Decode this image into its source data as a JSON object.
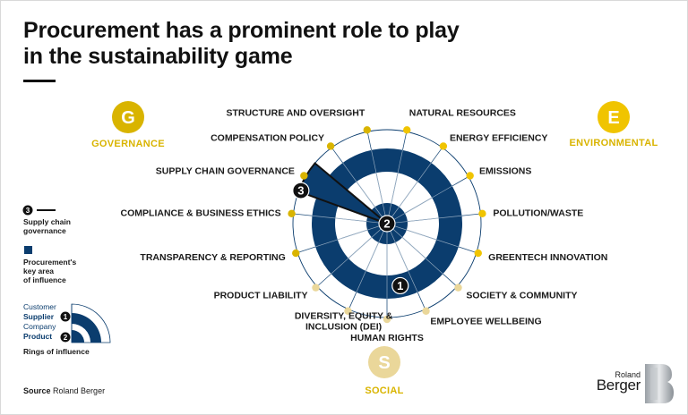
{
  "title_line1": "Procurement has a prominent role to play",
  "title_line2": "in the sustainability game",
  "categories": {
    "governance": {
      "letter": "G",
      "name": "GOVERNANCE",
      "color": "#d9b400"
    },
    "environmental": {
      "letter": "E",
      "name": "ENVIRONMENTAL",
      "color": "#f0c400"
    },
    "social": {
      "letter": "S",
      "name": "SOCIAL",
      "color": "#ead79a"
    }
  },
  "spokes": [
    {
      "label": "NATURAL RESOURCES",
      "group": "environmental"
    },
    {
      "label": "ENERGY EFFICIENCY",
      "group": "environmental"
    },
    {
      "label": "EMISSIONS",
      "group": "environmental"
    },
    {
      "label": "POLLUTION/WASTE",
      "group": "environmental"
    },
    {
      "label": "GREENTECH INNOVATION",
      "group": "environmental"
    },
    {
      "label": "SOCIETY & COMMUNITY",
      "group": "social"
    },
    {
      "label": "EMPLOYEE WELLBEING",
      "group": "social"
    },
    {
      "label": "HUMAN RIGHTS",
      "group": "social"
    },
    {
      "label": "DIVERSITY, EQUITY & INCLUSION (DEI)",
      "group": "social"
    },
    {
      "label": "PRODUCT LIABILITY",
      "group": "social"
    },
    {
      "label": "TRANSPARENCY & REPORTING",
      "group": "governance"
    },
    {
      "label": "COMPLIANCE & BUSINESS ETHICS",
      "group": "governance"
    },
    {
      "label": "SUPPLY CHAIN GOVERNANCE",
      "group": "governance"
    },
    {
      "label": "COMPENSATION POLICY",
      "group": "governance"
    },
    {
      "label": "STRUCTURE AND OVERSIGHT",
      "group": "governance"
    }
  ],
  "markers": {
    "outer": "1",
    "inner": "2",
    "supply": "3"
  },
  "legend": {
    "item3_num": "3",
    "item3_line1": "Supply chain",
    "item3_line2": "governance",
    "key_line1": "Procurement's",
    "key_line2": "key area",
    "key_line3": "of influence",
    "ring_customer": "Customer",
    "ring_supplier": "Supplier",
    "ring_company": "Company",
    "ring_product": "Product",
    "ring_num1": "1",
    "ring_num2": "2",
    "rings_title": "Rings of influence"
  },
  "source_label": "Source",
  "source_value": "Roland Berger",
  "logo": {
    "top": "Roland",
    "main": "Berger"
  },
  "colors": {
    "navy": "#0b3d6e",
    "ring_line": "#0b3d6e"
  }
}
